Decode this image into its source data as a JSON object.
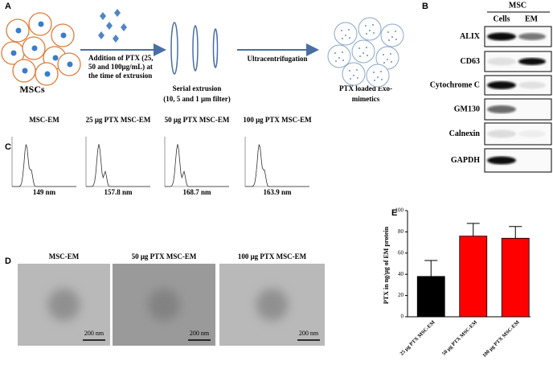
{
  "panel_a": {
    "label": "A",
    "cells_label": "MSCs",
    "addition_text": [
      "Addition of PTX (25,",
      "50 and 100μg/mL) at",
      "the time of extrusion"
    ],
    "extrusion_text": [
      "Serial extrusion",
      "(10, 5 and 1 μm filter)"
    ],
    "ultracentrifugation": "Ultracentrifugation",
    "product_text": [
      "PTX loaded Exo-",
      "mimetics"
    ]
  },
  "panel_b": {
    "label": "B",
    "group": "MSC",
    "columns": [
      "Cells",
      "EM"
    ],
    "rows": [
      "ALIX",
      "CD63",
      "Cytochrome C",
      "GM130",
      "Calnexin",
      "GAPDH"
    ]
  },
  "panel_c": {
    "label": "C",
    "titles": [
      "MSC-EM",
      "25 μg PTX MSC-EM",
      "50 μg PTX MSC-EM",
      "100 μg PTX MSC-EM"
    ],
    "sizes": [
      "149 nm",
      "157.8 nm",
      "168.7 nm",
      "163.9 nm"
    ]
  },
  "panel_d": {
    "label": "D",
    "titles": [
      "MSC-EM",
      "50 μg PTX MSC-EM",
      "100 μg PTX MSC-EM"
    ],
    "scale_bars": [
      "200 nm",
      "200 nm",
      "200 nm"
    ]
  },
  "chart_data": {
    "type": "bar",
    "label": "E",
    "y_label": "PTX in ng/μg of EM protein",
    "categories": [
      "25 μg PTX MSC-EM",
      "50 μg PTX MSC-EM",
      "100 μg PTX MSC-EM"
    ],
    "values": [
      38,
      76,
      74
    ],
    "errors": [
      15,
      12,
      11
    ],
    "colors": [
      "#000000",
      "#ff0000",
      "#ff0000"
    ],
    "ylim": [
      0,
      100
    ],
    "yticks": [
      0,
      20,
      40,
      60,
      80,
      100
    ]
  }
}
